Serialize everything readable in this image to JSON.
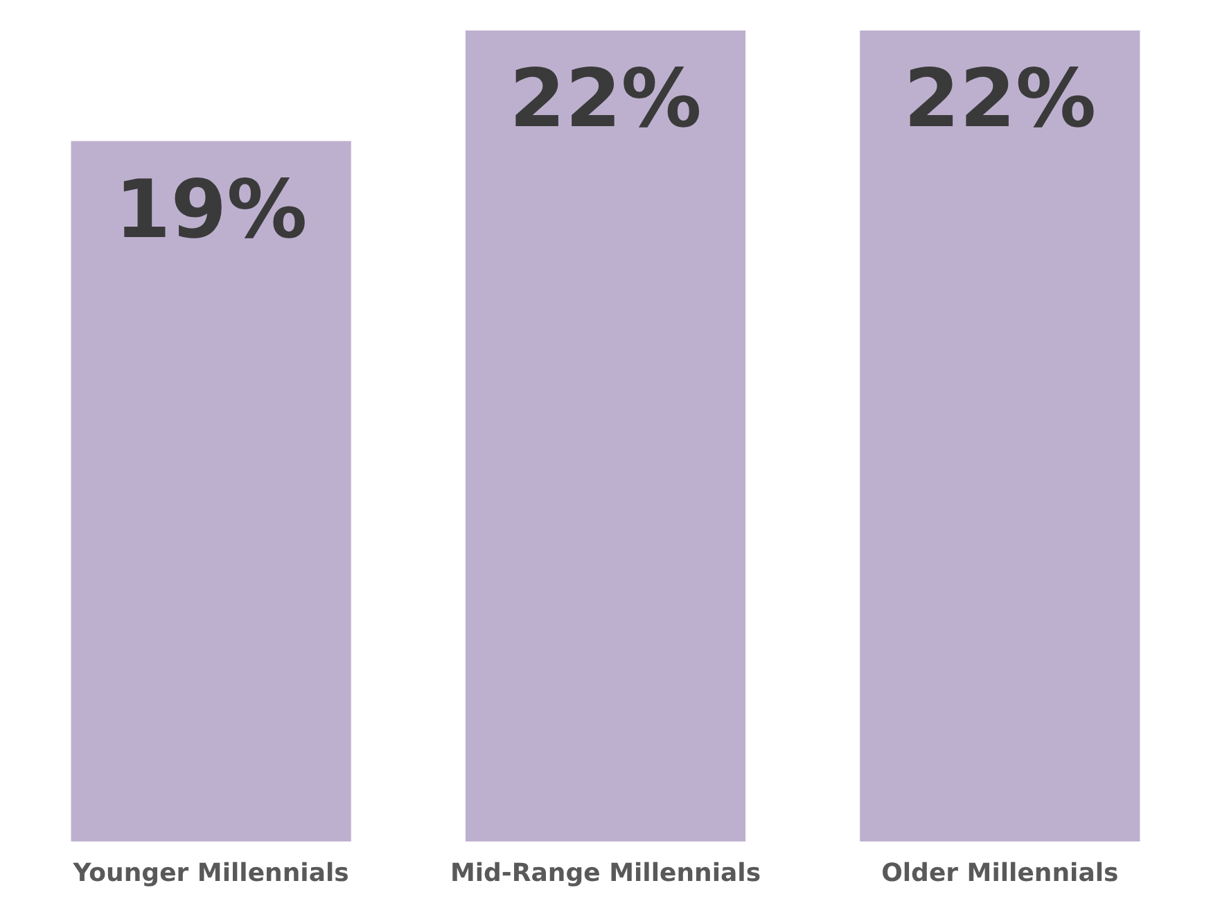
{
  "chart_data": {
    "type": "bar",
    "categories": [
      "Younger Millennials",
      "Mid-Range Millennials",
      "Older Millennials"
    ],
    "values": [
      19,
      22,
      22
    ],
    "value_labels": [
      "19%",
      "22%",
      "22%"
    ],
    "color": "#bdb0cf"
  }
}
